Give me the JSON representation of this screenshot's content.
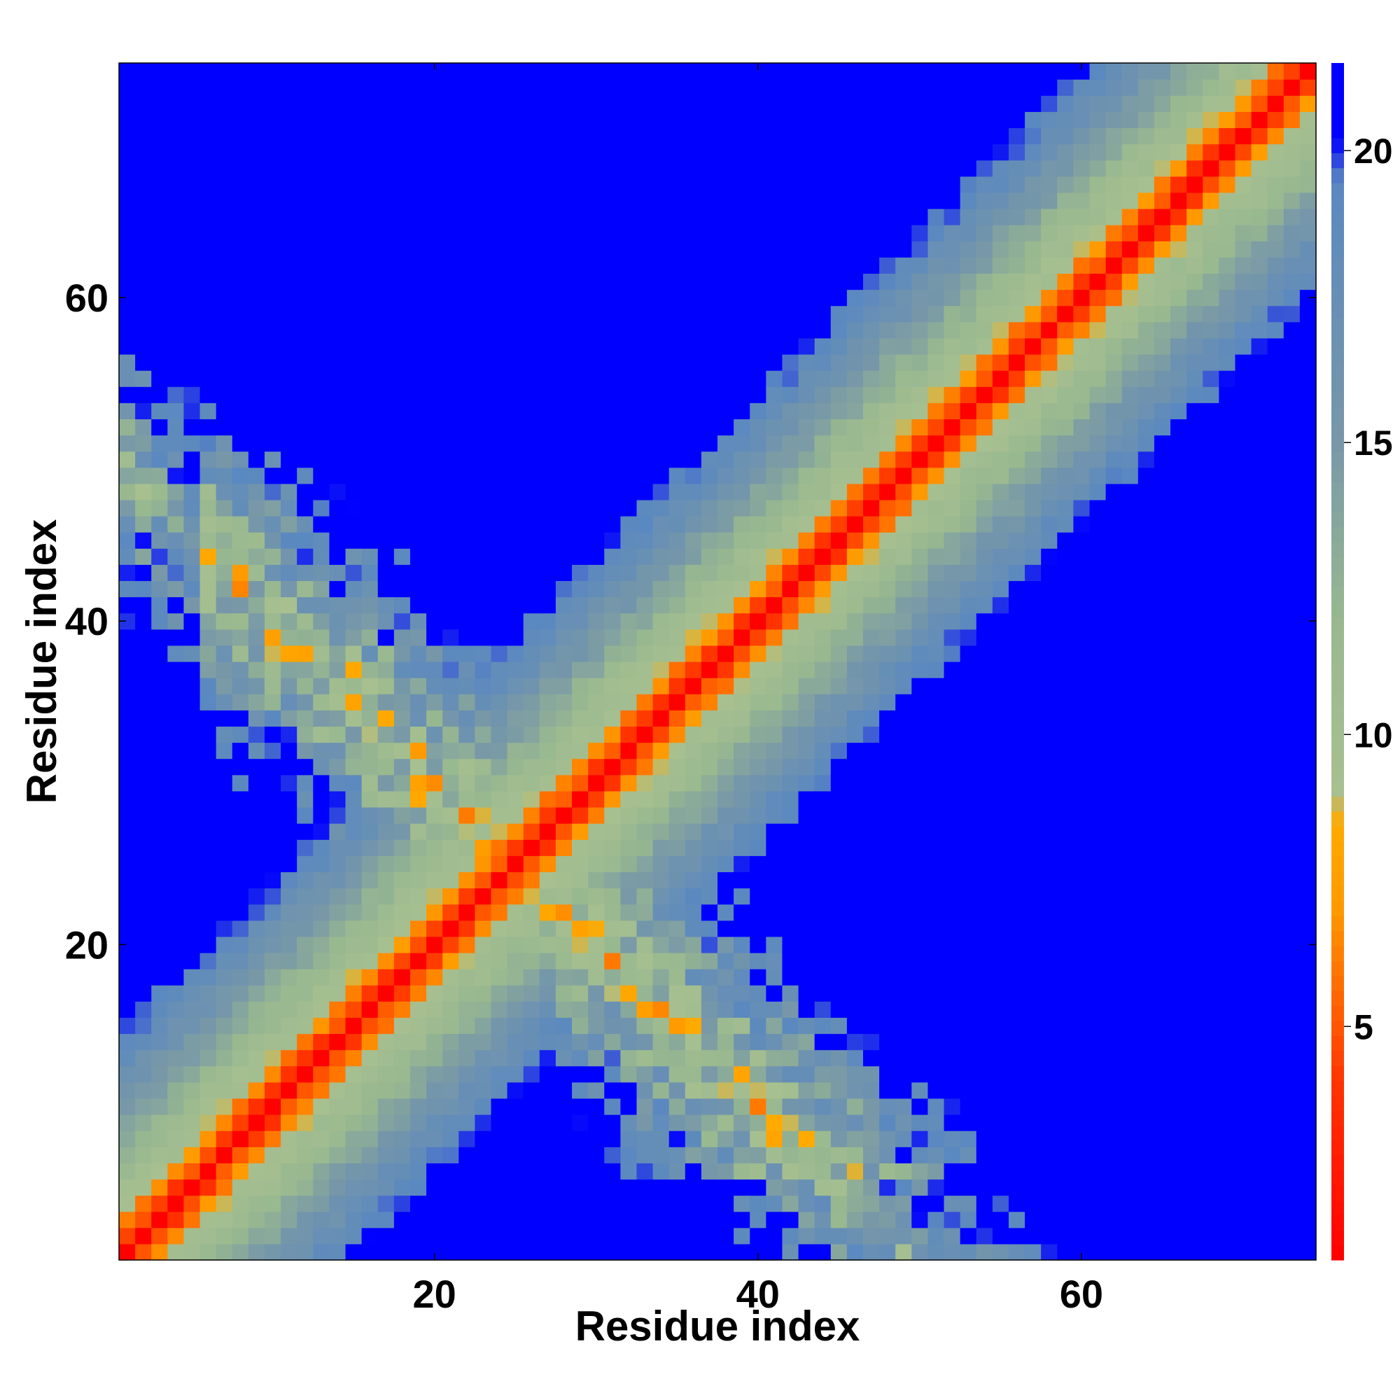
{
  "chart_data": {
    "type": "heatmap",
    "title": "",
    "xlabel": "Residue index",
    "ylabel": "Residue index",
    "n_residues": 74,
    "xlim": [
      0.5,
      74.5
    ],
    "ylim": [
      0.5,
      74.5
    ],
    "x_ticks": [
      20,
      40,
      60
    ],
    "y_ticks": [
      20,
      40,
      60
    ],
    "x_tick_labels": [
      "20",
      "40",
      "60"
    ],
    "y_tick_labels": [
      "20",
      "40",
      "60"
    ],
    "colorbar": {
      "range": [
        1,
        21.5
      ],
      "ticks": [
        5,
        10,
        15,
        20
      ],
      "tick_labels": [
        "5",
        "10",
        "15",
        "20"
      ],
      "palette": [
        {
          "value": 1,
          "color": "#ff0000"
        },
        {
          "value": 4,
          "color": "#ff3300"
        },
        {
          "value": 5.5,
          "color": "#ff6600"
        },
        {
          "value": 7,
          "color": "#ff9900"
        },
        {
          "value": 8.5,
          "color": "#ffaa00"
        },
        {
          "value": 9,
          "color": "#a8c090"
        },
        {
          "value": 12,
          "color": "#98b890"
        },
        {
          "value": 15,
          "color": "#7898a8"
        },
        {
          "value": 19.5,
          "color": "#5a88c0"
        },
        {
          "value": 20.2,
          "color": "#0000ff"
        }
      ],
      "far_color": "#0000ff"
    },
    "model": {
      "description_values": "distance grows with |i-j|; anti-diagonal crossing region near (i+j)=50",
      "diagonal_band": [
        [
          0,
          1.5
        ],
        [
          1,
          4.5
        ],
        [
          2,
          6.5
        ],
        [
          3,
          9.5
        ],
        [
          5,
          11
        ],
        [
          7,
          13
        ],
        [
          9,
          15
        ],
        [
          11,
          17
        ],
        [
          13,
          19
        ],
        [
          15,
          21
        ]
      ],
      "cross_center_sum": 50,
      "cross_halfwidth": 6
    }
  }
}
